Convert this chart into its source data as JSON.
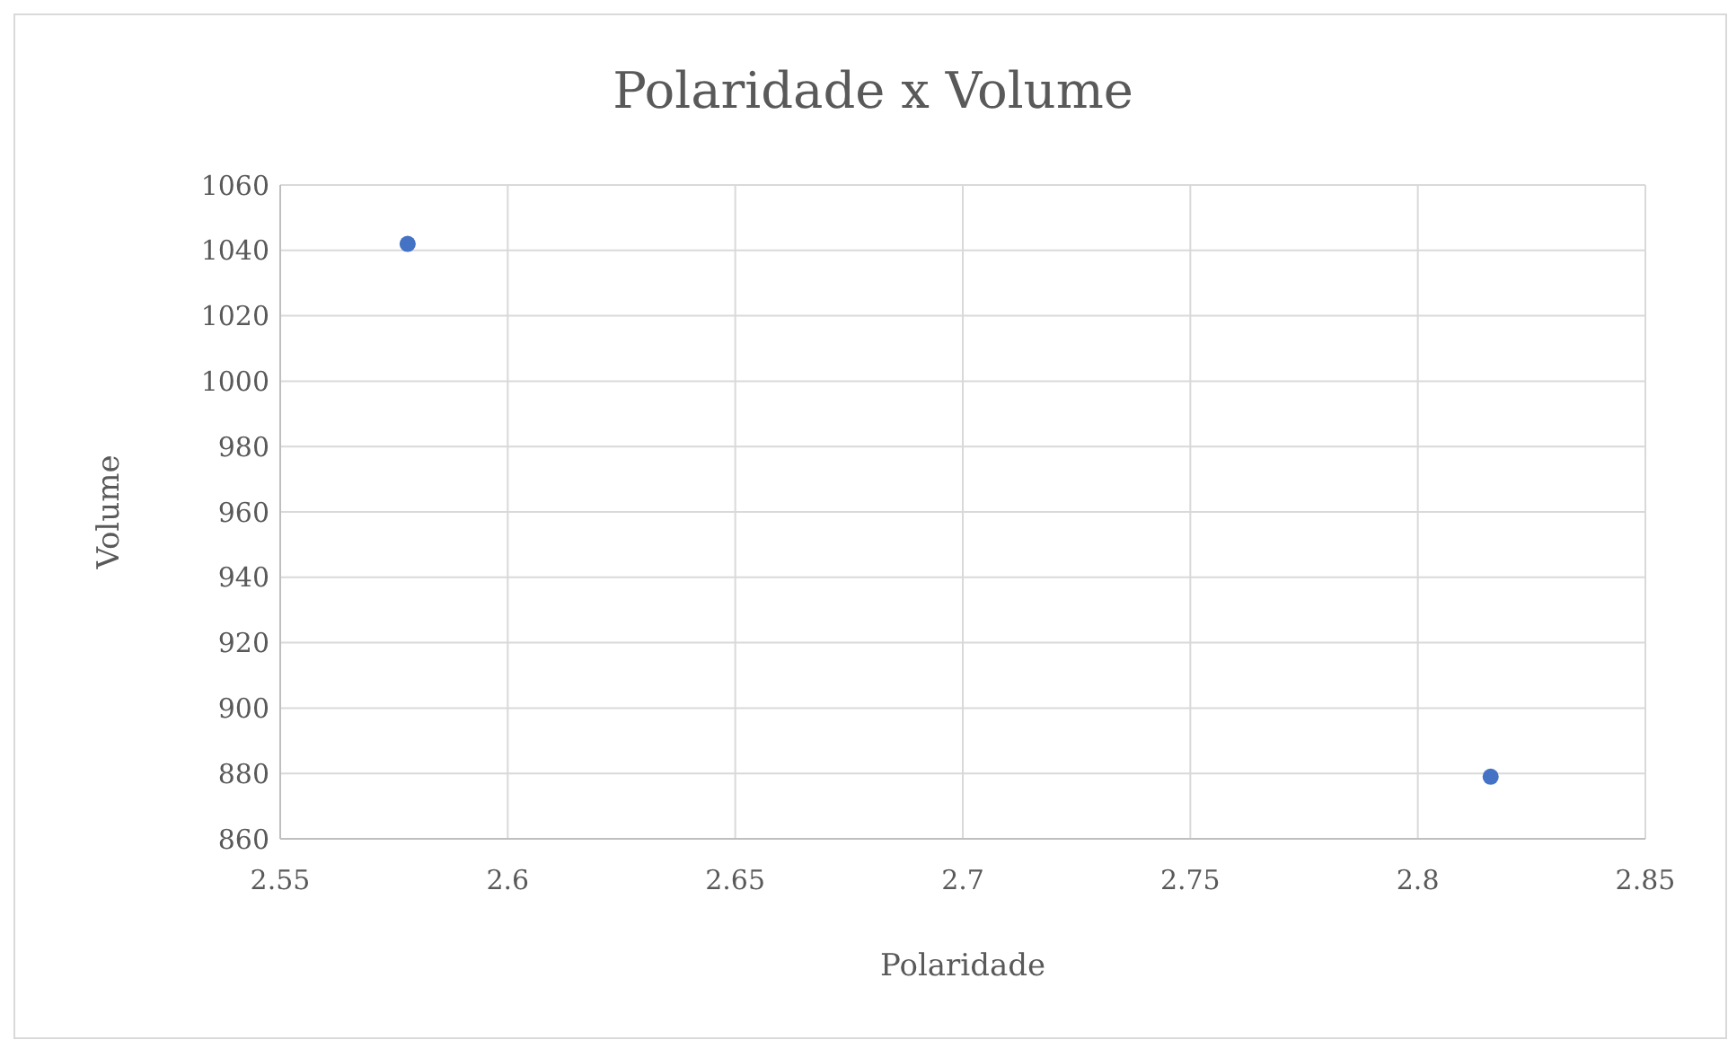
{
  "chart_data": {
    "type": "scatter",
    "title": "Polaridade x Volume",
    "xlabel": "Polaridade",
    "ylabel": "Volume",
    "x": [
      2.578,
      2.816
    ],
    "series": [
      {
        "color": "#4472c4",
        "values": [
          1042,
          879
        ]
      }
    ],
    "xlim": [
      2.55,
      2.85
    ],
    "xticks": [
      2.55,
      2.6,
      2.65,
      2.7,
      2.75,
      2.8,
      2.85
    ],
    "ylim": [
      860,
      1060
    ],
    "yticks": [
      860,
      880,
      900,
      920,
      940,
      960,
      980,
      1000,
      1020,
      1040,
      1060
    ],
    "grid": true,
    "marker": "circle"
  }
}
